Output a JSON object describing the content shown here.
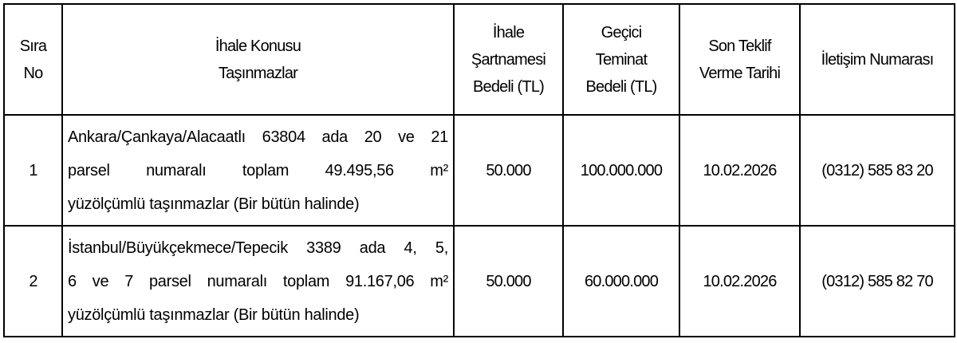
{
  "headers": {
    "sira": [
      "Sıra",
      "No"
    ],
    "konu": [
      "İhale Konusu",
      "Taşınmazlar"
    ],
    "sartname": [
      "İhale",
      "Şartnamesi",
      "Bedeli (TL)"
    ],
    "teminat": [
      "Geçici",
      "Teminat",
      "Bedeli (TL)"
    ],
    "tarih": [
      "Son Teklif",
      "Verme Tarihi"
    ],
    "iletisim": "İletişim Numarası"
  },
  "rows": [
    {
      "no": "1",
      "desc_lines": [
        "Ankara/Çankaya/Alacaatlı 63804 ada 20 ve 21",
        "parsel numaralı toplam 49.495,56 m²",
        "yüzölçümlü taşınmazlar (Bir bütün halinde)"
      ],
      "sartname": "50.000",
      "teminat": "100.000.000",
      "tarih": "10.02.2026",
      "iletisim": "(0312) 585 83 20"
    },
    {
      "no": "2",
      "desc_lines": [
        "İstanbul/Büyükçekmece/Tepecik 3389 ada 4, 5,",
        "6 ve 7 parsel numaralı toplam 91.167,06 m²",
        "yüzölçümlü taşınmazlar (Bir bütün halinde)"
      ],
      "sartname": "50.000",
      "teminat": "60.000.000",
      "tarih": "10.02.2026",
      "iletisim": "(0312) 585 82 70"
    }
  ]
}
